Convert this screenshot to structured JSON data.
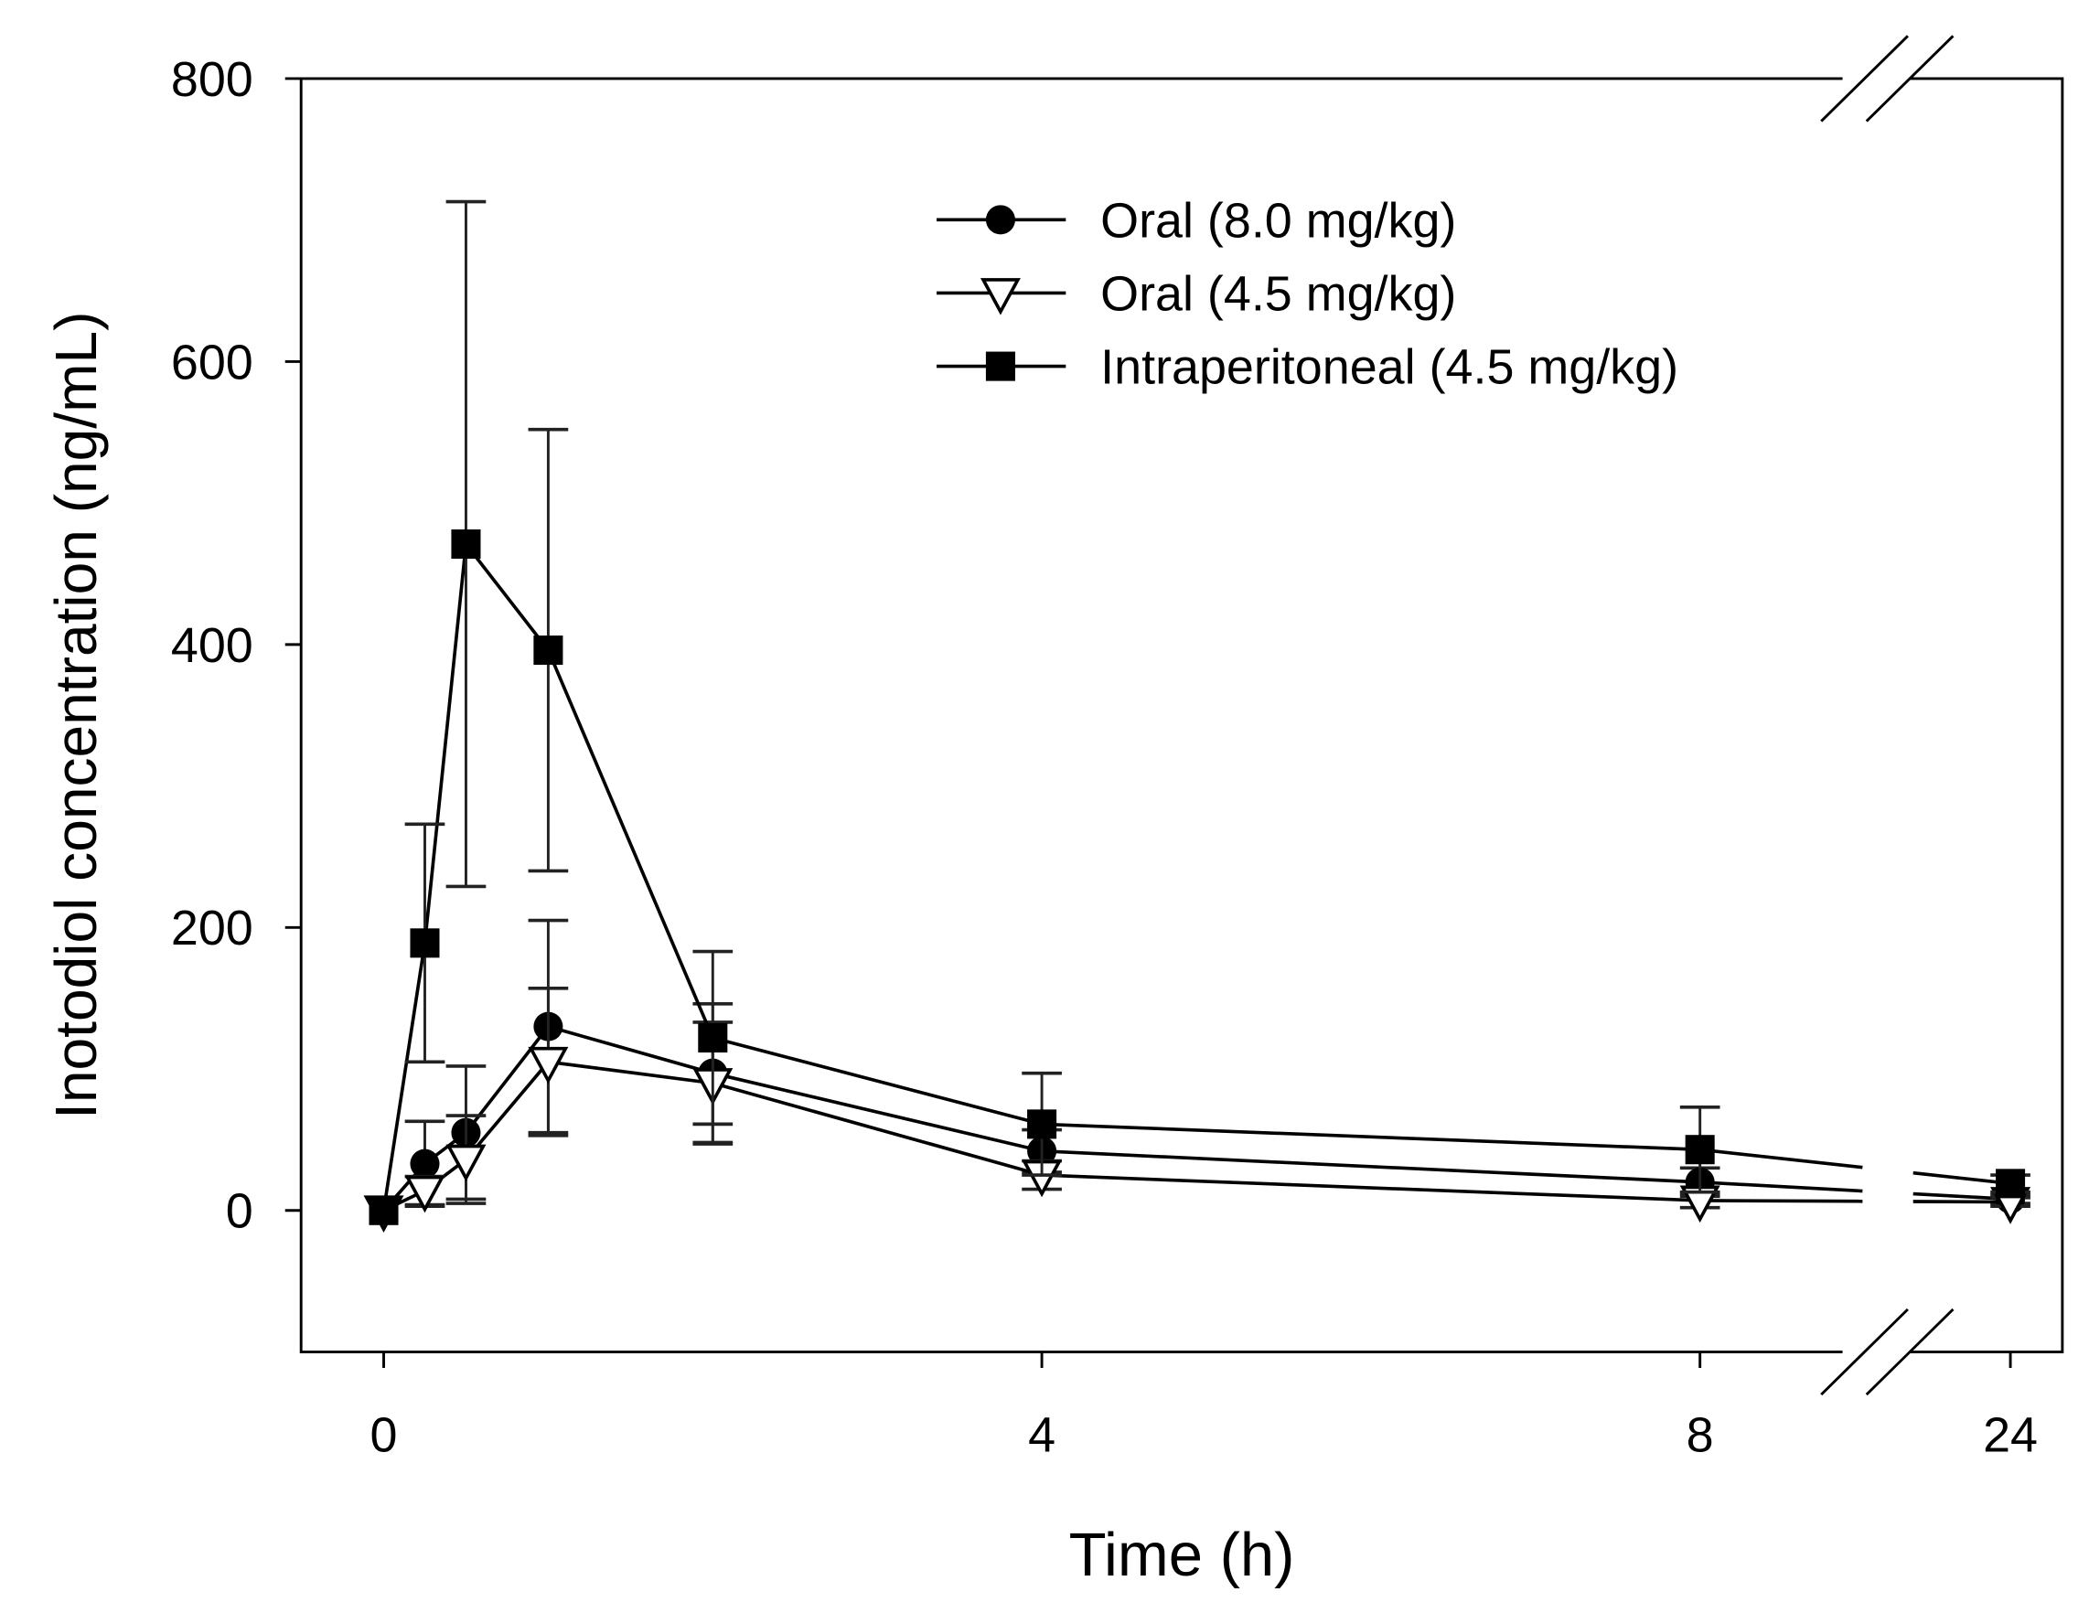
{
  "chart_data": {
    "type": "line",
    "xlabel": "Time (h)",
    "ylabel": "Inotodiol concentration (ng/mL)",
    "x_ticks": [
      "0",
      "4",
      "8",
      "24"
    ],
    "x_tick_values": [
      0,
      4,
      8,
      24
    ],
    "x_axis_break": [
      8,
      24
    ],
    "y_ticks": [
      "0",
      "200",
      "400",
      "600",
      "800"
    ],
    "ylim": [
      -100,
      800
    ],
    "grid": false,
    "legend_position": "top-right",
    "x": [
      0,
      0.25,
      0.5,
      1,
      2,
      4,
      8,
      24
    ],
    "series": [
      {
        "name": "Oral (8.0 mg/kg)",
        "marker": "filled-circle",
        "values": [
          0,
          33,
          55,
          130,
          97,
          42,
          20,
          8
        ],
        "sd": [
          0,
          30,
          47,
          75,
          49,
          15,
          10,
          3
        ]
      },
      {
        "name": "Oral (4.5 mg/kg)",
        "marker": "open-triangle-down",
        "values": [
          0,
          14,
          36,
          105,
          90,
          25,
          7,
          6
        ],
        "sd": [
          0,
          10,
          31,
          52,
          43,
          10,
          5,
          3
        ]
      },
      {
        "name": "Intraperitoneal (4.5 mg/kg)",
        "marker": "filled-square",
        "values": [
          0,
          189,
          471,
          396,
          122,
          61,
          43,
          19
        ],
        "sd": [
          0,
          84,
          242,
          156,
          61,
          36,
          30,
          6
        ]
      }
    ],
    "colors": {
      "line": "#000000",
      "background": "#ffffff"
    }
  }
}
